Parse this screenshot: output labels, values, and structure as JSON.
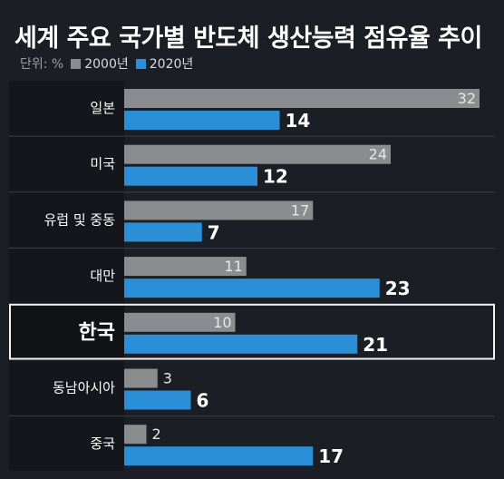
{
  "chart_data": {
    "type": "bar",
    "orientation": "horizontal",
    "title": "세계 주요 국가별 반도체 생산능력 점유율 추이",
    "unit_label": "단위: %",
    "categories": [
      "일본",
      "미국",
      "유럽 및 중동",
      "대만",
      "한국",
      "동남아시아",
      "중국"
    ],
    "series": [
      {
        "name": "2000년",
        "color": "#8a8d90",
        "values": [
          32,
          24,
          17,
          11,
          10,
          3,
          2
        ]
      },
      {
        "name": "2020년",
        "color": "#2b8fd8",
        "values": [
          14,
          12,
          7,
          23,
          21,
          6,
          17
        ]
      }
    ],
    "highlight_category": "한국",
    "xlim": [
      0,
      32
    ],
    "grid": false,
    "legend": "top-left"
  }
}
